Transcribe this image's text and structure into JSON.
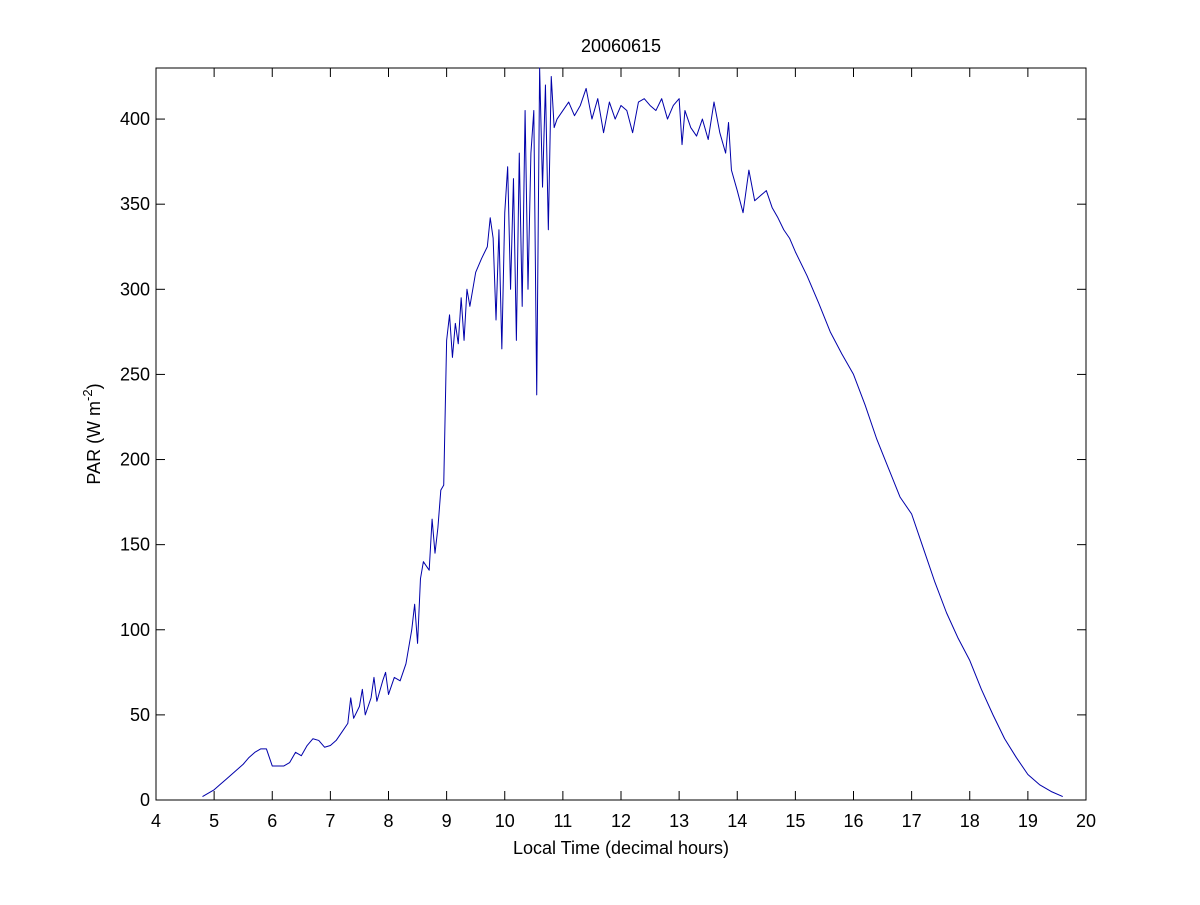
{
  "chart_data": {
    "type": "line",
    "title": "20060615",
    "xlabel": "Local Time (decimal hours)",
    "ylabel": {
      "text": "PAR (W m",
      "superscript": "-2",
      "suffix": ")"
    },
    "xlim": [
      4,
      20
    ],
    "xticks": [
      4,
      5,
      6,
      7,
      8,
      9,
      10,
      11,
      12,
      13,
      14,
      15,
      16,
      17,
      18,
      19,
      20
    ],
    "ylim": [
      0,
      430
    ],
    "yticks": [
      0,
      50,
      100,
      150,
      200,
      250,
      300,
      350,
      400
    ],
    "grid": false,
    "x": [
      4.8,
      4.9,
      5.0,
      5.1,
      5.2,
      5.3,
      5.4,
      5.5,
      5.6,
      5.7,
      5.8,
      5.9,
      5.95,
      6.0,
      6.1,
      6.2,
      6.3,
      6.4,
      6.5,
      6.6,
      6.7,
      6.8,
      6.9,
      7.0,
      7.1,
      7.2,
      7.3,
      7.35,
      7.4,
      7.5,
      7.55,
      7.6,
      7.7,
      7.75,
      7.8,
      7.9,
      7.95,
      8.0,
      8.1,
      8.2,
      8.3,
      8.4,
      8.45,
      8.5,
      8.55,
      8.6,
      8.7,
      8.75,
      8.8,
      8.85,
      8.9,
      8.95,
      9.0,
      9.05,
      9.1,
      9.15,
      9.2,
      9.25,
      9.3,
      9.35,
      9.4,
      9.5,
      9.6,
      9.7,
      9.75,
      9.8,
      9.85,
      9.9,
      9.95,
      10.0,
      10.05,
      10.1,
      10.15,
      10.2,
      10.25,
      10.3,
      10.35,
      10.4,
      10.45,
      10.5,
      10.55,
      10.6,
      10.65,
      10.7,
      10.75,
      10.8,
      10.85,
      10.9,
      11.0,
      11.1,
      11.2,
      11.3,
      11.4,
      11.5,
      11.6,
      11.7,
      11.8,
      11.9,
      12.0,
      12.1,
      12.2,
      12.3,
      12.4,
      12.5,
      12.6,
      12.7,
      12.8,
      12.9,
      13.0,
      13.05,
      13.1,
      13.2,
      13.3,
      13.4,
      13.5,
      13.6,
      13.7,
      13.8,
      13.85,
      13.9,
      14.0,
      14.1,
      14.2,
      14.3,
      14.4,
      14.5,
      14.6,
      14.7,
      14.8,
      14.9,
      15.0,
      15.2,
      15.4,
      15.6,
      15.8,
      16.0,
      16.2,
      16.4,
      16.6,
      16.8,
      17.0,
      17.2,
      17.4,
      17.6,
      17.8,
      18.0,
      18.2,
      18.4,
      18.6,
      18.8,
      19.0,
      19.2,
      19.4,
      19.6
    ],
    "series": [
      {
        "name": "PAR",
        "color": "#0000aa",
        "values": [
          2,
          4,
          6,
          9,
          12,
          15,
          18,
          21,
          25,
          28,
          30,
          30,
          25,
          20,
          20,
          20,
          22,
          28,
          26,
          32,
          36,
          35,
          31,
          32,
          35,
          40,
          45,
          60,
          48,
          55,
          65,
          50,
          60,
          72,
          58,
          70,
          75,
          62,
          72,
          70,
          80,
          100,
          115,
          92,
          130,
          140,
          135,
          165,
          145,
          160,
          182,
          185,
          270,
          285,
          260,
          280,
          268,
          295,
          270,
          300,
          290,
          310,
          318,
          325,
          342,
          330,
          282,
          335,
          265,
          345,
          372,
          300,
          365,
          270,
          380,
          290,
          405,
          300,
          380,
          405,
          238,
          430,
          360,
          420,
          335,
          425,
          395,
          400,
          405,
          410,
          402,
          408,
          418,
          400,
          412,
          392,
          410,
          400,
          408,
          405,
          392,
          410,
          412,
          408,
          405,
          412,
          400,
          408,
          412,
          385,
          405,
          395,
          390,
          400,
          388,
          410,
          392,
          380,
          398,
          370,
          358,
          345,
          370,
          352,
          355,
          358,
          348,
          342,
          335,
          330,
          322,
          308,
          292,
          275,
          262,
          250,
          232,
          212,
          195,
          178,
          168,
          148,
          128,
          110,
          95,
          82,
          65,
          50,
          36,
          25,
          15,
          9,
          5,
          2
        ]
      }
    ]
  }
}
